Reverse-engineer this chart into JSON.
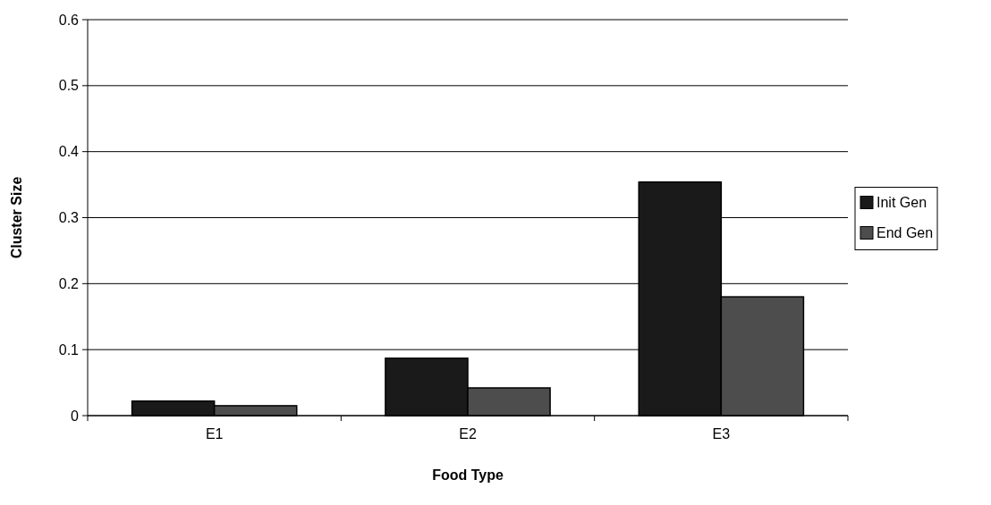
{
  "chart_data": {
    "type": "bar",
    "xlabel": "Food Type",
    "ylabel": "Cluster Size",
    "categories": [
      "E1",
      "E2",
      "E3"
    ],
    "series": [
      {
        "name": "Init Gen",
        "color": "#1a1a1a",
        "values": [
          0.022,
          0.087,
          0.354
        ]
      },
      {
        "name": "End Gen",
        "color": "#4d4d4d",
        "values": [
          0.015,
          0.042,
          0.18
        ]
      }
    ],
    "ylim": [
      0,
      0.6
    ],
    "yticks": [
      {
        "value": 0,
        "label": "0"
      },
      0.1,
      0.2,
      0.3,
      0.4,
      0.5,
      0.6
    ],
    "grid": "y",
    "legend": "right"
  }
}
